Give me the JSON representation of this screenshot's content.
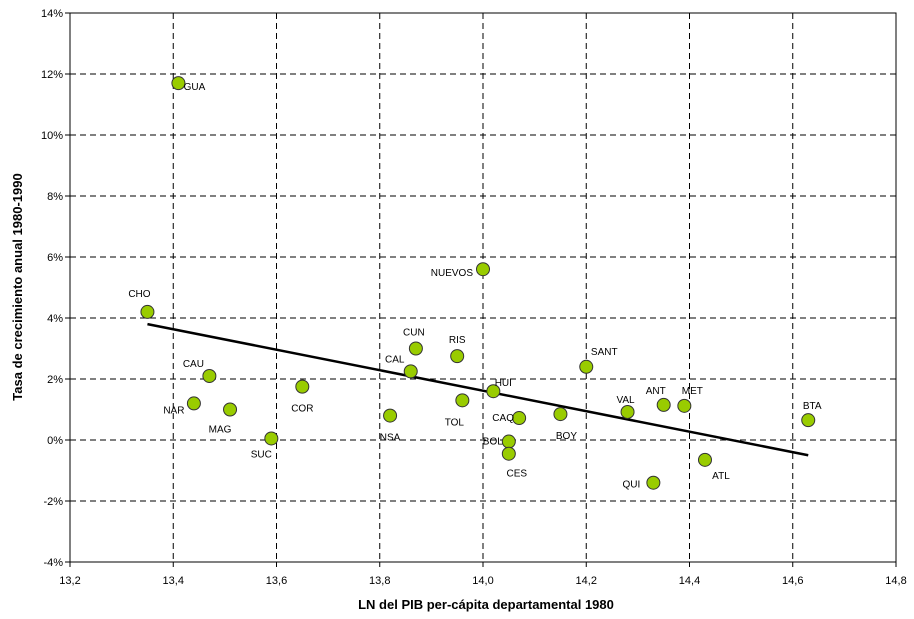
{
  "chart_data": {
    "type": "scatter",
    "title": "",
    "xlabel": "LN del PIB per-cápita departamental 1980",
    "ylabel": "Tasa de crecimiento anual 1980-1990",
    "xlim": [
      13.2,
      14.8
    ],
    "ylim": [
      -4,
      14
    ],
    "grid": "dashed",
    "x_ticks": [
      "13,2",
      "13,4",
      "13,6",
      "13,8",
      "14,0",
      "14,2",
      "14,4",
      "14,6",
      "14,8"
    ],
    "y_ticks": [
      "-4%",
      "-2%",
      "0%",
      "2%",
      "4%",
      "6%",
      "8%",
      "10%",
      "12%",
      "14%"
    ],
    "points": [
      {
        "label": "GUA",
        "x": 13.41,
        "y": 11.7
      },
      {
        "label": "CHO",
        "x": 13.35,
        "y": 4.2
      },
      {
        "label": "CAU",
        "x": 13.47,
        "y": 2.1
      },
      {
        "label": "NAR",
        "x": 13.44,
        "y": 1.2
      },
      {
        "label": "MAG",
        "x": 13.51,
        "y": 1.0
      },
      {
        "label": "SUC",
        "x": 13.59,
        "y": 0.05
      },
      {
        "label": "COR",
        "x": 13.65,
        "y": 1.75
      },
      {
        "label": "NSA",
        "x": 13.82,
        "y": 0.8
      },
      {
        "label": "CAL",
        "x": 13.86,
        "y": 2.25
      },
      {
        "label": "CUN",
        "x": 13.87,
        "y": 3.0
      },
      {
        "label": "RIS",
        "x": 13.95,
        "y": 2.75
      },
      {
        "label": "TOL",
        "x": 13.96,
        "y": 1.3
      },
      {
        "label": "NUEVOS",
        "x": 14.0,
        "y": 5.6
      },
      {
        "label": "HUI",
        "x": 14.02,
        "y": 1.6
      },
      {
        "label": "BOL",
        "x": 14.05,
        "y": -0.05
      },
      {
        "label": "CES",
        "x": 14.05,
        "y": -0.45
      },
      {
        "label": "CAQ",
        "x": 14.07,
        "y": 0.72
      },
      {
        "label": "BOY",
        "x": 14.15,
        "y": 0.85
      },
      {
        "label": "SANT",
        "x": 14.2,
        "y": 2.4
      },
      {
        "label": "VAL",
        "x": 14.28,
        "y": 0.92
      },
      {
        "label": "QUI",
        "x": 14.33,
        "y": -1.4
      },
      {
        "label": "ANT",
        "x": 14.35,
        "y": 1.15
      },
      {
        "label": "MET",
        "x": 14.39,
        "y": 1.12
      },
      {
        "label": "ATL",
        "x": 14.43,
        "y": -0.65
      },
      {
        "label": "BTA",
        "x": 14.63,
        "y": 0.65
      }
    ],
    "trendline": [
      {
        "x": 13.35,
        "y": 3.8
      },
      {
        "x": 14.63,
        "y": -0.5
      }
    ],
    "colors": {
      "marker_fill": "#99cc00",
      "marker_stroke": "#333333",
      "trendline": "#000000",
      "grid": "#000000"
    }
  }
}
